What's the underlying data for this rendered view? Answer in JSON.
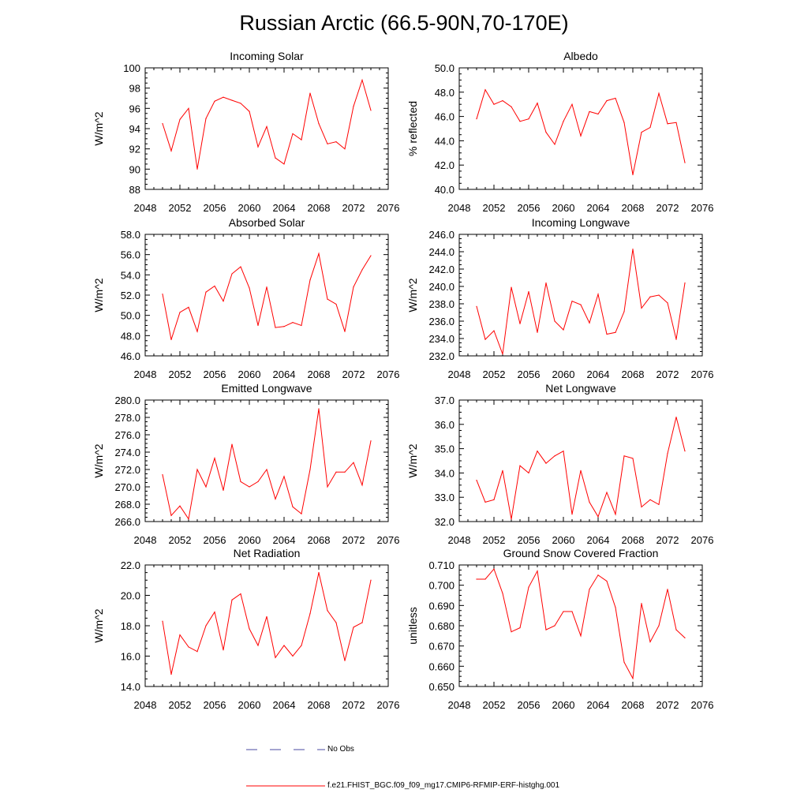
{
  "title": "Russian Arctic (66.5-90N,70-170E)",
  "legend": {
    "obs_label": "No Obs",
    "obs_color": "#4a4aa0",
    "model_label": "f.e21.FHIST_BGC.f09_f09_mg17.CMIP6-RFMIP-ERF-histghg.001",
    "model_color": "#ff0000"
  },
  "chart_data": [
    {
      "type": "line",
      "title": "Incoming Solar",
      "ylabel": "W/m^2",
      "xlim": [
        2048,
        2076
      ],
      "ylim": [
        88,
        100
      ],
      "xticks": [
        "2048",
        "2052",
        "2056",
        "2060",
        "2064",
        "2068",
        "2072",
        "2076"
      ],
      "yticks": [
        "88",
        "90",
        "92",
        "94",
        "96",
        "98",
        "100"
      ],
      "x": [
        2050,
        2051,
        2052,
        2053,
        2054,
        2055,
        2056,
        2057,
        2058,
        2059,
        2060,
        2061,
        2062,
        2063,
        2064,
        2065,
        2066,
        2067,
        2068,
        2069,
        2070,
        2071,
        2072,
        2073,
        2074
      ],
      "series": [
        {
          "values": [
            94.5,
            91.8,
            94.9,
            96.0,
            90.0,
            95.0,
            96.7,
            97.1,
            96.8,
            96.5,
            95.7,
            92.2,
            94.2,
            91.1,
            90.5,
            93.5,
            92.9,
            97.5,
            94.5,
            92.5,
            92.7,
            92.0,
            96.2,
            98.8,
            95.8
          ]
        }
      ]
    },
    {
      "type": "line",
      "title": "Albedo",
      "ylabel": "% reflected",
      "xlim": [
        2048,
        2076
      ],
      "ylim": [
        40,
        50
      ],
      "xticks": [
        "2048",
        "2052",
        "2056",
        "2060",
        "2064",
        "2068",
        "2072",
        "2076"
      ],
      "yticks": [
        "40.0",
        "42.0",
        "44.0",
        "46.0",
        "48.0",
        "50.0"
      ],
      "x": [
        2050,
        2051,
        2052,
        2053,
        2054,
        2055,
        2056,
        2057,
        2058,
        2059,
        2060,
        2061,
        2062,
        2063,
        2064,
        2065,
        2066,
        2067,
        2068,
        2069,
        2070,
        2071,
        2072,
        2073,
        2074
      ],
      "series": [
        {
          "values": [
            45.8,
            48.2,
            47.0,
            47.3,
            46.8,
            45.6,
            45.8,
            47.1,
            44.7,
            43.7,
            45.6,
            47.0,
            44.4,
            46.4,
            46.2,
            47.3,
            47.5,
            45.5,
            41.2,
            44.7,
            45.1,
            47.9,
            45.4,
            45.5,
            42.2
          ]
        }
      ]
    },
    {
      "type": "line",
      "title": "Absorbed Solar",
      "ylabel": "W/m^2",
      "xlim": [
        2048,
        2076
      ],
      "ylim": [
        46,
        58
      ],
      "xticks": [
        "2048",
        "2052",
        "2056",
        "2060",
        "2064",
        "2068",
        "2072",
        "2076"
      ],
      "yticks": [
        "46.0",
        "48.0",
        "50.0",
        "52.0",
        "54.0",
        "56.0",
        "58.0"
      ],
      "x": [
        2050,
        2051,
        2052,
        2053,
        2054,
        2055,
        2056,
        2057,
        2058,
        2059,
        2060,
        2061,
        2062,
        2063,
        2064,
        2065,
        2066,
        2067,
        2068,
        2069,
        2070,
        2071,
        2072,
        2073,
        2074
      ],
      "series": [
        {
          "values": [
            52.1,
            47.6,
            50.3,
            50.8,
            48.4,
            52.3,
            52.9,
            51.4,
            54.1,
            54.8,
            52.7,
            49.0,
            52.8,
            48.8,
            48.9,
            49.3,
            49.0,
            53.5,
            56.1,
            51.6,
            51.1,
            48.4,
            52.8,
            54.5,
            55.9
          ]
        }
      ]
    },
    {
      "type": "line",
      "title": "Incoming Longwave",
      "ylabel": "W/m^2",
      "xlim": [
        2048,
        2076
      ],
      "ylim": [
        232,
        246
      ],
      "xticks": [
        "2048",
        "2052",
        "2056",
        "2060",
        "2064",
        "2068",
        "2072",
        "2076"
      ],
      "yticks": [
        "232.0",
        "234.0",
        "236.0",
        "238.0",
        "240.0",
        "242.0",
        "244.0",
        "246.0"
      ],
      "x": [
        2050,
        2051,
        2052,
        2053,
        2054,
        2055,
        2056,
        2057,
        2058,
        2059,
        2060,
        2061,
        2062,
        2063,
        2064,
        2065,
        2066,
        2067,
        2068,
        2069,
        2070,
        2071,
        2072,
        2073,
        2074
      ],
      "series": [
        {
          "values": [
            237.7,
            233.9,
            234.9,
            232.2,
            239.9,
            235.7,
            239.4,
            234.7,
            240.4,
            236.0,
            235.0,
            238.3,
            237.9,
            235.8,
            239.1,
            234.5,
            234.7,
            237.1,
            244.3,
            237.5,
            238.8,
            239.0,
            238.1,
            233.9,
            240.4
          ]
        }
      ]
    },
    {
      "type": "line",
      "title": "Emitted Longwave",
      "ylabel": "W/m^2",
      "xlim": [
        2048,
        2076
      ],
      "ylim": [
        266,
        280
      ],
      "xticks": [
        "2048",
        "2052",
        "2056",
        "2060",
        "2064",
        "2068",
        "2072",
        "2076"
      ],
      "yticks": [
        "266.0",
        "268.0",
        "270.0",
        "272.0",
        "274.0",
        "276.0",
        "278.0",
        "280.0"
      ],
      "x": [
        2050,
        2051,
        2052,
        2053,
        2054,
        2055,
        2056,
        2057,
        2058,
        2059,
        2060,
        2061,
        2062,
        2063,
        2064,
        2065,
        2066,
        2067,
        2068,
        2069,
        2070,
        2071,
        2072,
        2073,
        2074
      ],
      "series": [
        {
          "values": [
            271.4,
            266.7,
            267.8,
            266.3,
            272.0,
            270.0,
            273.3,
            269.6,
            274.9,
            270.6,
            270.0,
            270.6,
            272.0,
            268.6,
            271.2,
            267.7,
            266.9,
            272.0,
            279.0,
            270.0,
            271.7,
            271.7,
            272.8,
            270.2,
            275.3
          ]
        }
      ]
    },
    {
      "type": "line",
      "title": "Net Longwave",
      "ylabel": "W/m^2",
      "xlim": [
        2048,
        2076
      ],
      "ylim": [
        32,
        37
      ],
      "xticks": [
        "2048",
        "2052",
        "2056",
        "2060",
        "2064",
        "2068",
        "2072",
        "2076"
      ],
      "yticks": [
        "32.0",
        "33.0",
        "34.0",
        "35.0",
        "36.0",
        "37.0"
      ],
      "x": [
        2050,
        2051,
        2052,
        2053,
        2054,
        2055,
        2056,
        2057,
        2058,
        2059,
        2060,
        2061,
        2062,
        2063,
        2064,
        2065,
        2066,
        2067,
        2068,
        2069,
        2070,
        2071,
        2072,
        2073,
        2074
      ],
      "series": [
        {
          "values": [
            33.7,
            32.8,
            32.9,
            34.1,
            32.1,
            34.3,
            34.0,
            34.9,
            34.4,
            34.7,
            34.9,
            32.3,
            34.1,
            32.8,
            32.2,
            33.2,
            32.3,
            34.7,
            34.6,
            32.6,
            32.9,
            32.7,
            34.8,
            36.3,
            34.9
          ]
        }
      ]
    },
    {
      "type": "line",
      "title": "Net Radiation",
      "ylabel": "W/m^2",
      "xlim": [
        2048,
        2076
      ],
      "ylim": [
        14,
        22
      ],
      "xticks": [
        "2048",
        "2052",
        "2056",
        "2060",
        "2064",
        "2068",
        "2072",
        "2076"
      ],
      "yticks": [
        "14.0",
        "16.0",
        "18.0",
        "20.0",
        "22.0"
      ],
      "x": [
        2050,
        2051,
        2052,
        2053,
        2054,
        2055,
        2056,
        2057,
        2058,
        2059,
        2060,
        2061,
        2062,
        2063,
        2064,
        2065,
        2066,
        2067,
        2068,
        2069,
        2070,
        2071,
        2072,
        2073,
        2074
      ],
      "series": [
        {
          "values": [
            18.3,
            14.8,
            17.4,
            16.6,
            16.3,
            18.0,
            18.9,
            16.4,
            19.7,
            20.1,
            17.8,
            16.7,
            18.6,
            15.9,
            16.7,
            16.0,
            16.7,
            18.8,
            21.5,
            19.0,
            18.2,
            15.7,
            17.9,
            18.2,
            21.0
          ]
        }
      ]
    },
    {
      "type": "line",
      "title": "Ground Snow Covered Fraction",
      "ylabel": "unitless",
      "xlim": [
        2048,
        2076
      ],
      "ylim": [
        0.65,
        0.71
      ],
      "xticks": [
        "2048",
        "2052",
        "2056",
        "2060",
        "2064",
        "2068",
        "2072",
        "2076"
      ],
      "yticks": [
        "0.650",
        "0.660",
        "0.670",
        "0.680",
        "0.690",
        "0.700",
        "0.710"
      ],
      "x": [
        2050,
        2051,
        2052,
        2053,
        2054,
        2055,
        2056,
        2057,
        2058,
        2059,
        2060,
        2061,
        2062,
        2063,
        2064,
        2065,
        2066,
        2067,
        2068,
        2069,
        2070,
        2071,
        2072,
        2073,
        2074
      ],
      "series": [
        {
          "values": [
            0.703,
            0.703,
            0.708,
            0.696,
            0.677,
            0.679,
            0.699,
            0.707,
            0.678,
            0.68,
            0.687,
            0.687,
            0.675,
            0.698,
            0.705,
            0.702,
            0.689,
            0.662,
            0.654,
            0.691,
            0.672,
            0.68,
            0.698,
            0.678,
            0.674
          ]
        }
      ]
    }
  ]
}
